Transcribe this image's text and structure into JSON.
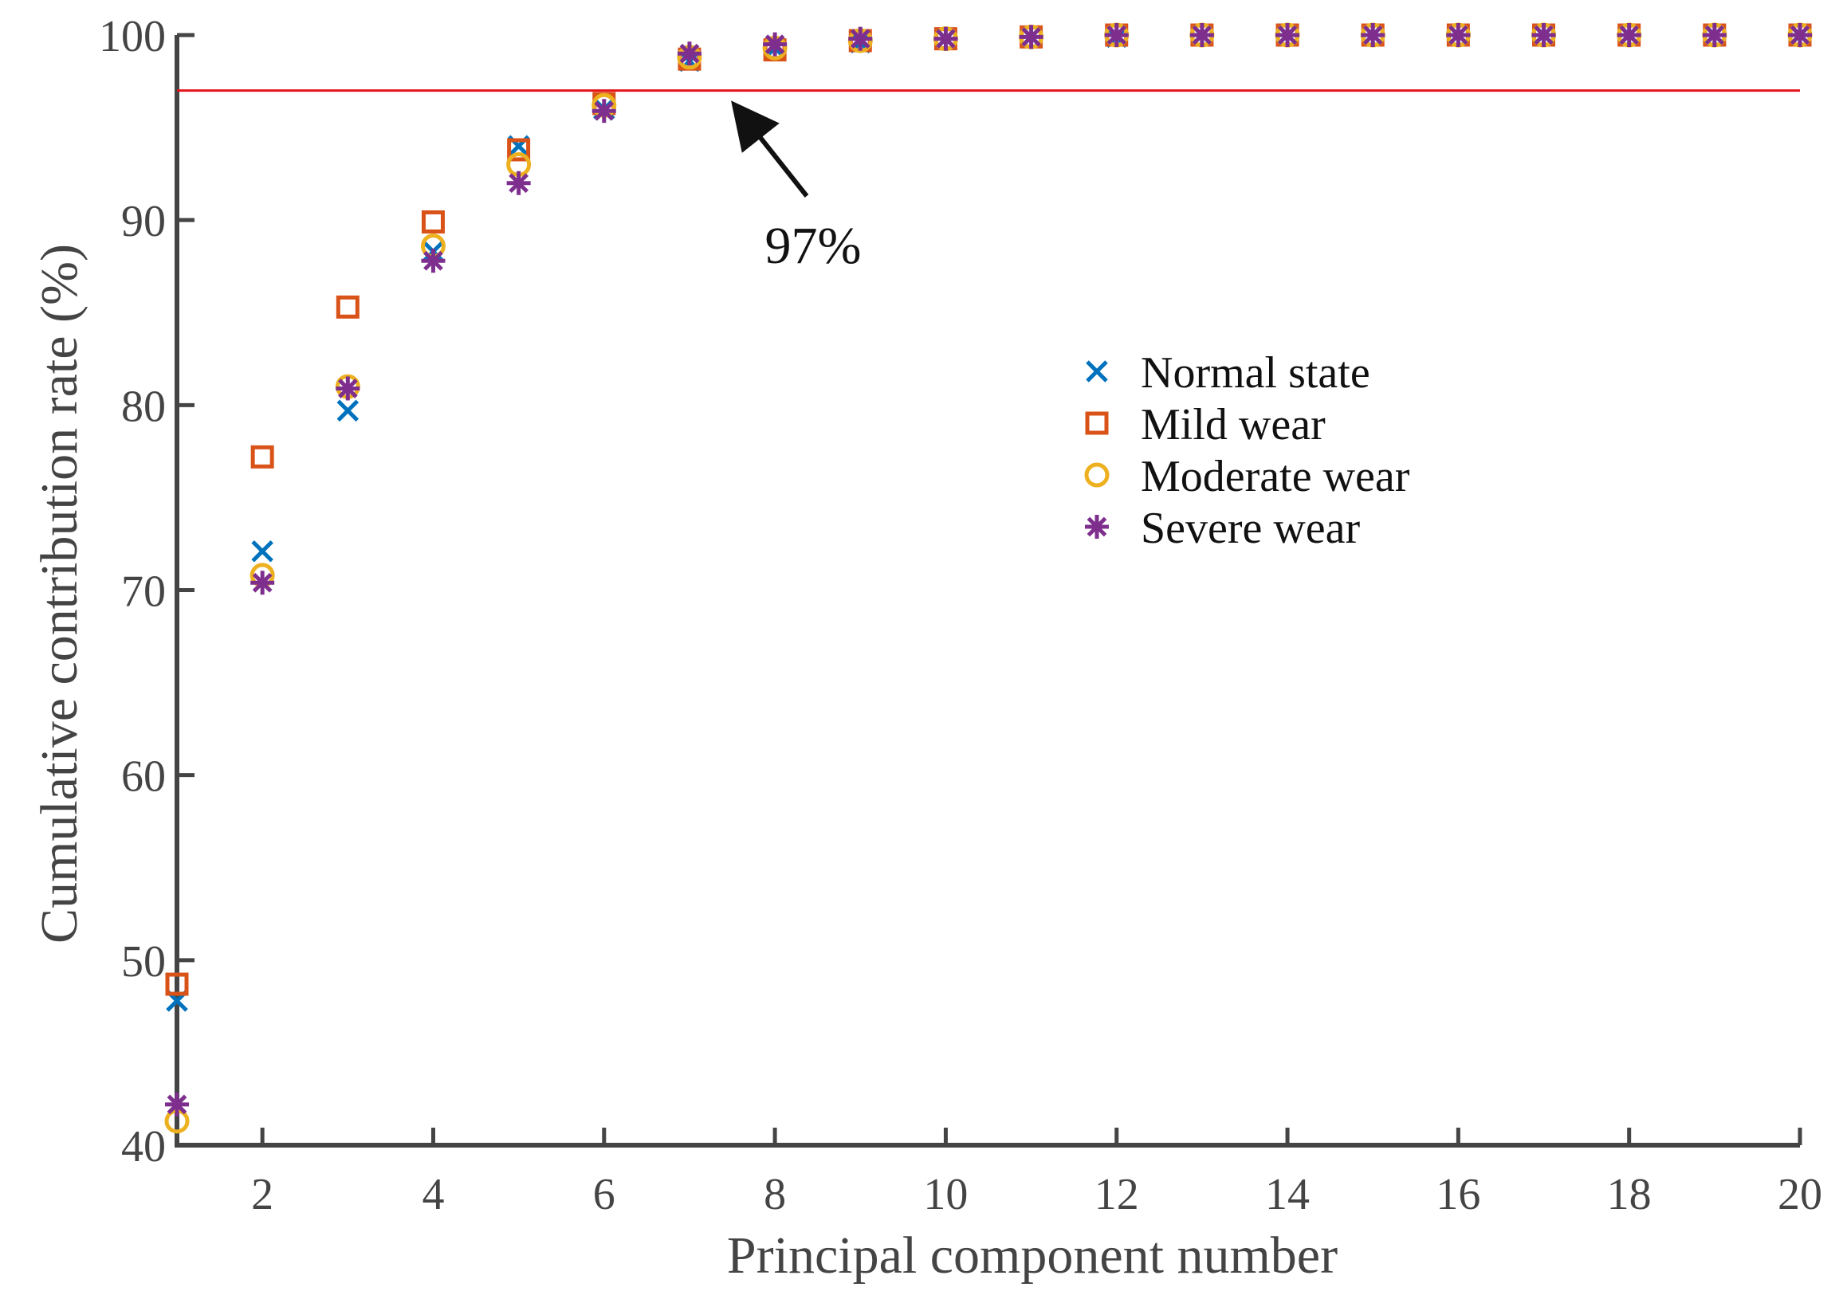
{
  "chart_data": {
    "type": "scatter",
    "title": "",
    "xlabel": "Principal component number",
    "ylabel": "Cumulative contribution rate (%)",
    "xlim": [
      1,
      20
    ],
    "ylim": [
      40,
      100
    ],
    "x": [
      1,
      2,
      3,
      4,
      5,
      6,
      7,
      8,
      9,
      10,
      11,
      12,
      13,
      14,
      15,
      16,
      17,
      18,
      19,
      20
    ],
    "xticks": [
      "2",
      "4",
      "6",
      "8",
      "10",
      "12",
      "14",
      "16",
      "18",
      "20"
    ],
    "yticks": [
      "40",
      "50",
      "60",
      "70",
      "80",
      "90",
      "100"
    ],
    "grid": false,
    "legend_position": "center-right",
    "series": [
      {
        "name": "Normal state",
        "marker": "x",
        "color": "#0072BD",
        "values": [
          47.8,
          72.1,
          79.7,
          88.3,
          94.0,
          96.0,
          98.6,
          99.3,
          99.6,
          99.8,
          99.9,
          99.9,
          100,
          100,
          100,
          100,
          100,
          100,
          100,
          100
        ]
      },
      {
        "name": "Mild wear",
        "marker": "square",
        "color": "#D95319",
        "values": [
          48.7,
          77.2,
          85.3,
          89.9,
          93.8,
          96.3,
          98.7,
          99.2,
          99.7,
          99.8,
          99.9,
          100,
          100,
          100,
          100,
          100,
          100,
          100,
          100,
          100
        ]
      },
      {
        "name": "Moderate wear",
        "marker": "circle",
        "color": "#EDB120",
        "values": [
          41.3,
          70.8,
          81.0,
          88.6,
          93.0,
          96.2,
          98.8,
          99.3,
          99.7,
          99.8,
          99.9,
          100,
          100,
          100,
          100,
          100,
          100,
          100,
          100,
          100
        ]
      },
      {
        "name": "Severe wear",
        "marker": "asterisk",
        "color": "#7E2F8E",
        "values": [
          42.2,
          70.4,
          80.9,
          87.8,
          92.0,
          95.9,
          99.0,
          99.5,
          99.8,
          99.8,
          99.9,
          100,
          100,
          100,
          100,
          100,
          100,
          100,
          100,
          100
        ]
      }
    ],
    "reference_line": {
      "y": 97,
      "color": "#E5141B"
    },
    "annotation": {
      "text": "97%",
      "arrow_to": [
        7.5,
        97
      ]
    },
    "colors": {
      "axis": "#444444"
    }
  }
}
